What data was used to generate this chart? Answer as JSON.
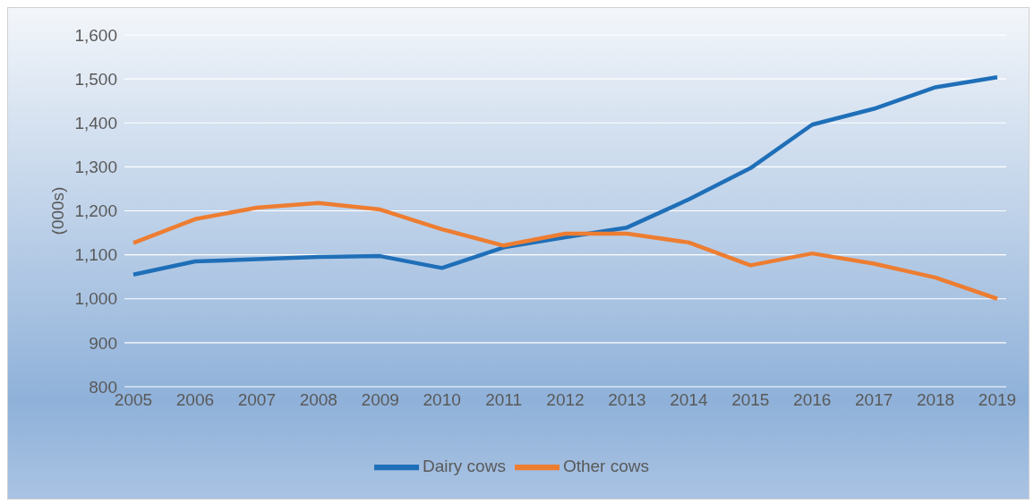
{
  "chart_data": {
    "type": "line",
    "ylabel": "(000s)",
    "categories": [
      "2005",
      "2006",
      "2007",
      "2008",
      "2009",
      "2010",
      "2011",
      "2012",
      "2013",
      "2014",
      "2015",
      "2016",
      "2017",
      "2018",
      "2019"
    ],
    "series": [
      {
        "name": "Dairy cows",
        "color": "#1f6fb8",
        "values": [
          1055,
          1085,
          1090,
          1095,
          1097,
          1070,
          1117,
          1140,
          1162,
          1226,
          1297,
          1396,
          1432,
          1481,
          1504
        ]
      },
      {
        "name": "Other cows",
        "color": "#ed7d31",
        "values": [
          1127,
          1181,
          1207,
          1218,
          1203,
          1158,
          1121,
          1148,
          1148,
          1128,
          1076,
          1103,
          1080,
          1048,
          1000
        ]
      }
    ],
    "ylim": [
      800,
      1600
    ],
    "yticks": [
      {
        "value": 800,
        "label": "800"
      },
      {
        "value": 900,
        "label": "900"
      },
      {
        "value": 1000,
        "label": "1,000"
      },
      {
        "value": 1100,
        "label": "1,100"
      },
      {
        "value": 1200,
        "label": "1,200"
      },
      {
        "value": 1300,
        "label": "1,300"
      },
      {
        "value": 1400,
        "label": "1,400"
      },
      {
        "value": 1500,
        "label": "1,500"
      },
      {
        "value": 1600,
        "label": "1,600"
      }
    ],
    "grid": "y",
    "legend": "bottom",
    "marker": "none",
    "line_style": "solid"
  }
}
